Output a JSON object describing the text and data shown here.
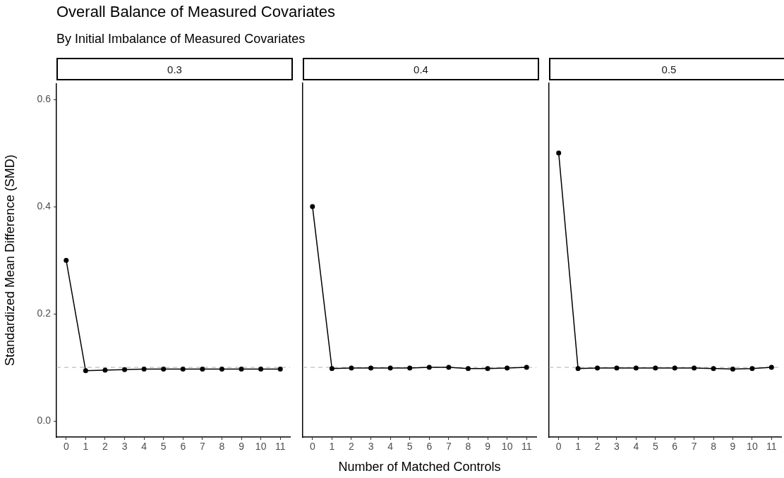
{
  "chart_data": [
    {
      "type": "line",
      "title": "0.3",
      "annotations": [
        "Overall Balance of Measured Covariates",
        "By Initial Imbalance of Measured Covariates"
      ],
      "ylabel": "Standardized Mean Difference (SMD)",
      "categories": [
        "0",
        "1",
        "2",
        "3",
        "4",
        "5",
        "6",
        "7",
        "8",
        "9",
        "10",
        "11"
      ],
      "series": [
        {
          "color": "#000000",
          "values": [
            0.3,
            0.094,
            0.095,
            0.096,
            0.097,
            0.097,
            0.097,
            0.097,
            0.097,
            0.097,
            0.097,
            0.097
          ]
        }
      ],
      "ylim": [
        -0.03,
        0.63
      ],
      "yticks": [
        {
          "value": 0,
          "label": "0.0"
        },
        {
          "value": 0.2,
          "label": "0.2"
        },
        {
          "value": 0.4,
          "label": "0.4"
        },
        {
          "value": 0.6,
          "label": "0.6"
        }
      ],
      "ref_lines": [
        {
          "axis": "y",
          "value": 0.1,
          "color": "#bebebe",
          "line_style": "dashed"
        }
      ],
      "marker": "circle",
      "line_style": "solid",
      "grid": false,
      "legend": false
    },
    {
      "type": "line",
      "title": "0.4",
      "xlabel": "Number of Matched Controls",
      "categories": [
        "0",
        "1",
        "2",
        "3",
        "4",
        "5",
        "6",
        "7",
        "8",
        "9",
        "10",
        "11"
      ],
      "series": [
        {
          "color": "#000000",
          "values": [
            0.4,
            0.098,
            0.099,
            0.099,
            0.099,
            0.099,
            0.1,
            0.1,
            0.098,
            0.098,
            0.099,
            0.1
          ]
        }
      ],
      "ylim": [
        -0.03,
        0.63
      ],
      "tick_labels": "x",
      "ref_lines": [
        {
          "axis": "y",
          "value": 0.1,
          "color": "#bebebe",
          "line_style": "dashed"
        }
      ],
      "marker": "circle",
      "line_style": "solid",
      "grid": false,
      "legend": false
    },
    {
      "type": "line",
      "title": "0.5",
      "categories": [
        "0",
        "1",
        "2",
        "3",
        "4",
        "5",
        "6",
        "7",
        "8",
        "9",
        "10",
        "11"
      ],
      "series": [
        {
          "color": "#000000",
          "values": [
            0.5,
            0.098,
            0.099,
            0.099,
            0.099,
            0.099,
            0.099,
            0.099,
            0.098,
            0.097,
            0.098,
            0.1
          ]
        }
      ],
      "ylim": [
        -0.03,
        0.63
      ],
      "tick_labels": "x",
      "ref_lines": [
        {
          "axis": "y",
          "value": 0.1,
          "color": "#bebebe",
          "line_style": "dashed"
        }
      ],
      "marker": "circle",
      "line_style": "solid",
      "grid": false,
      "legend": false
    }
  ]
}
